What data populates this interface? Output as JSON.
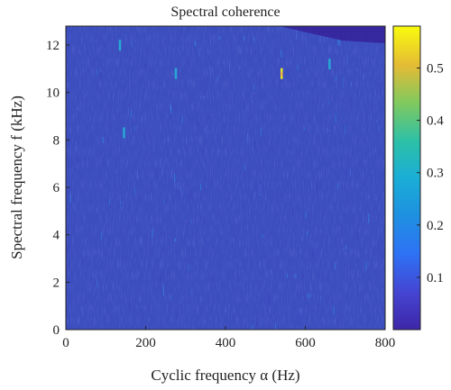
{
  "chart_data": {
    "type": "heatmap",
    "title": "Spectral coherence",
    "xlabel": "Cyclic frequency α (Hz)",
    "ylabel": "Spectral frequency f (kHz)",
    "xlim": [
      0,
      800
    ],
    "ylim": [
      0,
      12.8
    ],
    "x_ticks": [
      "0",
      "200",
      "400",
      "600",
      "800"
    ],
    "y_ticks": [
      "0",
      "2",
      "4",
      "6",
      "8",
      "10",
      "12"
    ],
    "colorbar": {
      "range": [
        0,
        0.58
      ],
      "ticks": [
        "0.1",
        "0.2",
        "0.3",
        "0.4",
        "0.5"
      ],
      "colormap": "parula"
    },
    "background_level": 0.04,
    "grid": false,
    "notable_features": [
      {
        "alpha": 540,
        "f": 10.8,
        "value": 0.55,
        "note": "isolated peak"
      },
      {
        "alpha": 275,
        "f": 10.8,
        "value": 0.2
      },
      {
        "alpha": 135,
        "f": 12.0,
        "value": 0.18
      },
      {
        "alpha": 660,
        "f": 11.2,
        "value": 0.18
      },
      {
        "alpha": 145,
        "f": 8.3,
        "value": 0.16
      }
    ],
    "colors": {
      "low": "#3e26a8",
      "background": "#3d4fbf",
      "mid": "#26b1d8",
      "high": "#f9fb0e",
      "orange": "#f5b93b"
    }
  }
}
